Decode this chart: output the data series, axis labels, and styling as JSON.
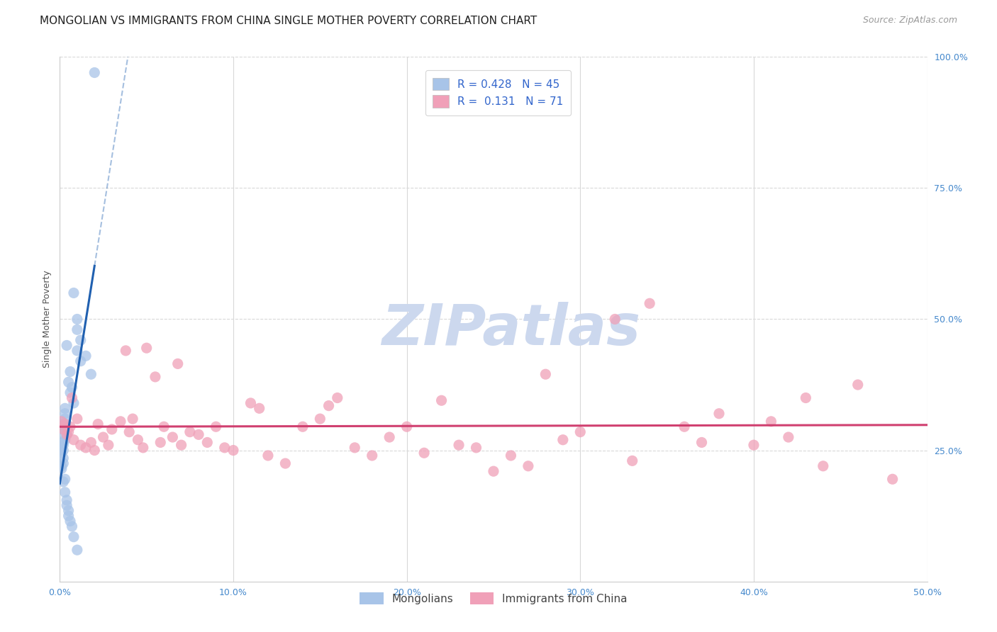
{
  "title": "MONGOLIAN VS IMMIGRANTS FROM CHINA SINGLE MOTHER POVERTY CORRELATION CHART",
  "source": "Source: ZipAtlas.com",
  "ylabel": "Single Mother Poverty",
  "legend_label1": "Mongolians",
  "legend_label2": "Immigrants from China",
  "R1": 0.428,
  "N1": 45,
  "R2": 0.131,
  "N2": 71,
  "color1": "#a8c4e8",
  "color2": "#f0a0b8",
  "trendline1_color": "#2060b0",
  "trendline2_color": "#d04070",
  "background_color": "#ffffff",
  "grid_color": "#d8d8d8",
  "xlim": [
    0.0,
    0.5
  ],
  "ylim": [
    0.0,
    1.0
  ],
  "xticks": [
    0.0,
    0.1,
    0.2,
    0.3,
    0.4,
    0.5
  ],
  "yticks": [
    0.25,
    0.5,
    0.75,
    1.0
  ],
  "mongolian_x": [
    0.02,
    0.008,
    0.01,
    0.01,
    0.012,
    0.01,
    0.012,
    0.015,
    0.018,
    0.004,
    0.006,
    0.005,
    0.007,
    0.006,
    0.008,
    0.003,
    0.003,
    0.004,
    0.003,
    0.003,
    0.002,
    0.002,
    0.002,
    0.002,
    0.003,
    0.002,
    0.002,
    0.001,
    0.002,
    0.001,
    0.002,
    0.002,
    0.001,
    0.001,
    0.003,
    0.002,
    0.003,
    0.004,
    0.004,
    0.005,
    0.005,
    0.006,
    0.007,
    0.008,
    0.01
  ],
  "mongolian_y": [
    0.97,
    0.55,
    0.5,
    0.48,
    0.46,
    0.44,
    0.42,
    0.43,
    0.395,
    0.45,
    0.4,
    0.38,
    0.37,
    0.36,
    0.34,
    0.31,
    0.33,
    0.28,
    0.3,
    0.32,
    0.3,
    0.295,
    0.29,
    0.28,
    0.27,
    0.265,
    0.26,
    0.255,
    0.25,
    0.245,
    0.235,
    0.225,
    0.22,
    0.215,
    0.195,
    0.19,
    0.17,
    0.155,
    0.145,
    0.135,
    0.125,
    0.115,
    0.105,
    0.085,
    0.06
  ],
  "china_x": [
    0.001,
    0.002,
    0.003,
    0.004,
    0.005,
    0.006,
    0.007,
    0.008,
    0.01,
    0.012,
    0.015,
    0.018,
    0.02,
    0.022,
    0.025,
    0.028,
    0.03,
    0.035,
    0.038,
    0.04,
    0.042,
    0.045,
    0.048,
    0.05,
    0.055,
    0.058,
    0.06,
    0.065,
    0.068,
    0.07,
    0.075,
    0.08,
    0.085,
    0.09,
    0.095,
    0.1,
    0.11,
    0.115,
    0.12,
    0.13,
    0.14,
    0.15,
    0.155,
    0.16,
    0.17,
    0.18,
    0.19,
    0.2,
    0.21,
    0.22,
    0.23,
    0.24,
    0.25,
    0.26,
    0.27,
    0.28,
    0.29,
    0.3,
    0.32,
    0.33,
    0.34,
    0.36,
    0.37,
    0.38,
    0.4,
    0.41,
    0.42,
    0.43,
    0.44,
    0.46,
    0.48
  ],
  "china_y": [
    0.305,
    0.29,
    0.3,
    0.28,
    0.285,
    0.295,
    0.35,
    0.27,
    0.31,
    0.26,
    0.255,
    0.265,
    0.25,
    0.3,
    0.275,
    0.26,
    0.29,
    0.305,
    0.44,
    0.285,
    0.31,
    0.27,
    0.255,
    0.445,
    0.39,
    0.265,
    0.295,
    0.275,
    0.415,
    0.26,
    0.285,
    0.28,
    0.265,
    0.295,
    0.255,
    0.25,
    0.34,
    0.33,
    0.24,
    0.225,
    0.295,
    0.31,
    0.335,
    0.35,
    0.255,
    0.24,
    0.275,
    0.295,
    0.245,
    0.345,
    0.26,
    0.255,
    0.21,
    0.24,
    0.22,
    0.395,
    0.27,
    0.285,
    0.5,
    0.23,
    0.53,
    0.295,
    0.265,
    0.32,
    0.26,
    0.305,
    0.275,
    0.35,
    0.22,
    0.375,
    0.195
  ],
  "watermark_text": "ZIPatlas",
  "watermark_color": "#ccd8ee",
  "title_fontsize": 11,
  "axis_label_fontsize": 9,
  "tick_fontsize": 9,
  "legend_fontsize": 11,
  "source_fontsize": 9
}
